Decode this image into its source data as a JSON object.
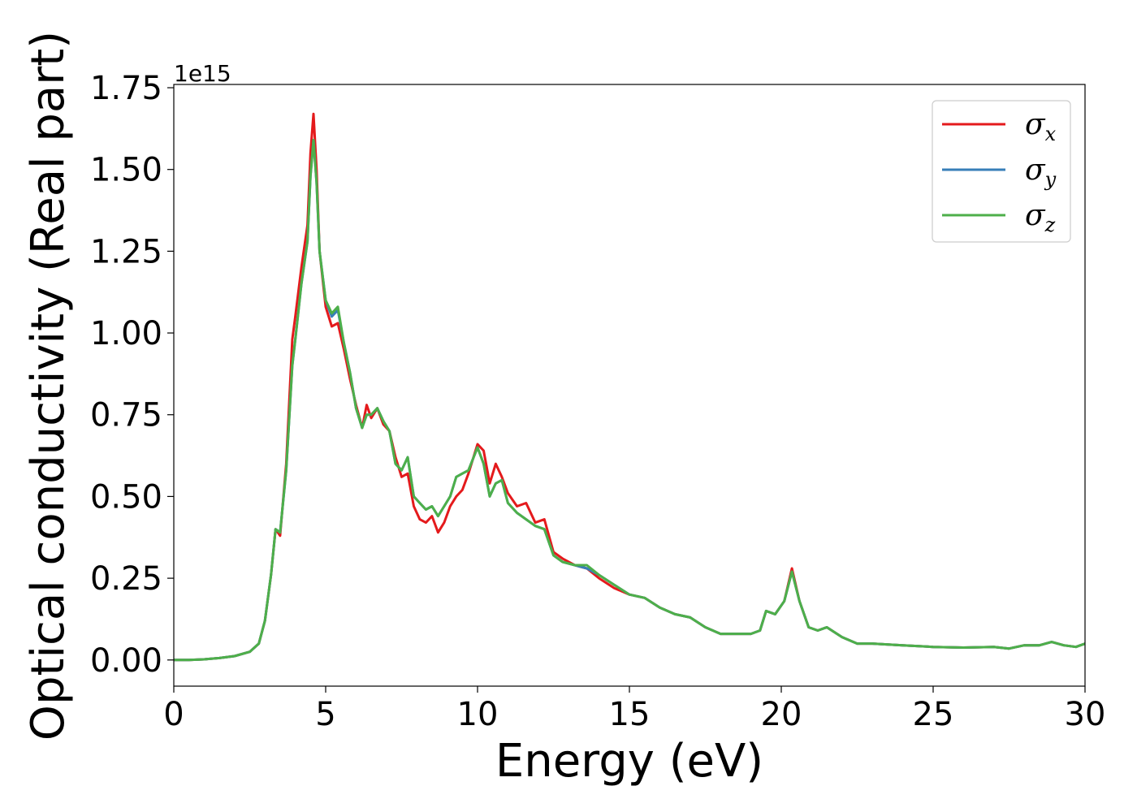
{
  "chart_data": {
    "type": "line",
    "title": "",
    "xlabel": "Energy (eV)",
    "ylabel": "Optical conductivity (Real part)",
    "y_offset_label": "1e15",
    "xlim": [
      0,
      30
    ],
    "ylim": [
      -0.08,
      1.76
    ],
    "x_ticks": [
      0,
      5,
      10,
      15,
      20,
      25,
      30
    ],
    "x_tick_labels": [
      "0",
      "5",
      "10",
      "15",
      "20",
      "25",
      "30"
    ],
    "y_ticks": [
      0.0,
      0.25,
      0.5,
      0.75,
      1.0,
      1.25,
      1.5,
      1.75
    ],
    "y_tick_labels": [
      "0.00",
      "0.25",
      "0.50",
      "0.75",
      "1.00",
      "1.25",
      "1.50",
      "1.75"
    ],
    "grid": false,
    "legend_position": "top-right",
    "series": [
      {
        "name": "σ",
        "subscript": "x",
        "color": "#e41a1c",
        "x": [
          0,
          0.5,
          1,
          1.5,
          2,
          2.5,
          2.8,
          3,
          3.2,
          3.35,
          3.5,
          3.7,
          3.9,
          4.0,
          4.2,
          4.4,
          4.5,
          4.6,
          4.7,
          4.8,
          5.0,
          5.2,
          5.4,
          5.6,
          5.8,
          6.0,
          6.2,
          6.35,
          6.5,
          6.7,
          6.9,
          7.1,
          7.3,
          7.5,
          7.7,
          7.9,
          8.1,
          8.3,
          8.5,
          8.7,
          8.9,
          9.1,
          9.3,
          9.5,
          9.7,
          10.0,
          10.2,
          10.4,
          10.6,
          10.8,
          11.0,
          11.3,
          11.6,
          11.9,
          12.2,
          12.5,
          12.8,
          13.2,
          13.6,
          14.0,
          14.5,
          15.0,
          15.5,
          16.0,
          16.5,
          17.0,
          17.5,
          18.0,
          18.5,
          19.0,
          19.3,
          19.5,
          19.8,
          20.1,
          20.35,
          20.6,
          20.9,
          21.2,
          21.5,
          22.0,
          22.5,
          23.0,
          24.0,
          25.0,
          26.0,
          27.0,
          27.5,
          28.0,
          28.5,
          28.9,
          29.3,
          29.7,
          30.0
        ],
        "values": [
          0.0,
          0.0,
          0.002,
          0.006,
          0.012,
          0.025,
          0.05,
          0.12,
          0.26,
          0.4,
          0.38,
          0.6,
          0.98,
          1.05,
          1.2,
          1.33,
          1.55,
          1.67,
          1.5,
          1.25,
          1.08,
          1.02,
          1.03,
          0.95,
          0.86,
          0.78,
          0.71,
          0.78,
          0.74,
          0.77,
          0.72,
          0.7,
          0.62,
          0.56,
          0.57,
          0.47,
          0.43,
          0.42,
          0.44,
          0.39,
          0.42,
          0.47,
          0.5,
          0.52,
          0.57,
          0.66,
          0.64,
          0.54,
          0.6,
          0.56,
          0.51,
          0.47,
          0.48,
          0.42,
          0.43,
          0.33,
          0.31,
          0.29,
          0.28,
          0.25,
          0.22,
          0.2,
          0.19,
          0.16,
          0.14,
          0.13,
          0.1,
          0.08,
          0.08,
          0.08,
          0.09,
          0.15,
          0.14,
          0.18,
          0.28,
          0.18,
          0.1,
          0.09,
          0.1,
          0.07,
          0.05,
          0.05,
          0.045,
          0.04,
          0.038,
          0.04,
          0.035,
          0.045,
          0.045,
          0.055,
          0.045,
          0.04,
          0.05
        ]
      },
      {
        "name": "σ",
        "subscript": "y",
        "color": "#377eb8",
        "x": [
          0,
          0.5,
          1,
          1.5,
          2,
          2.5,
          2.8,
          3,
          3.2,
          3.35,
          3.5,
          3.7,
          3.9,
          4.0,
          4.2,
          4.4,
          4.5,
          4.6,
          4.7,
          4.8,
          5.0,
          5.2,
          5.4,
          5.6,
          5.8,
          6.0,
          6.2,
          6.35,
          6.5,
          6.7,
          6.9,
          7.1,
          7.3,
          7.5,
          7.7,
          7.9,
          8.1,
          8.3,
          8.5,
          8.7,
          8.9,
          9.1,
          9.3,
          9.5,
          9.7,
          10.0,
          10.2,
          10.4,
          10.6,
          10.8,
          11.0,
          11.3,
          11.6,
          11.9,
          12.2,
          12.5,
          12.8,
          13.2,
          13.6,
          14.0,
          14.5,
          15.0,
          15.5,
          16.0,
          16.5,
          17.0,
          17.5,
          18.0,
          18.5,
          19.0,
          19.3,
          19.5,
          19.8,
          20.1,
          20.35,
          20.6,
          20.9,
          21.2,
          21.5,
          22.0,
          22.5,
          23.0,
          24.0,
          25.0,
          26.0,
          27.0,
          27.5,
          28.0,
          28.5,
          28.9,
          29.3,
          29.7,
          30.0
        ],
        "values": [
          0.0,
          0.0,
          0.002,
          0.006,
          0.012,
          0.025,
          0.05,
          0.12,
          0.26,
          0.4,
          0.39,
          0.58,
          0.9,
          0.98,
          1.15,
          1.28,
          1.48,
          1.59,
          1.46,
          1.25,
          1.1,
          1.05,
          1.07,
          0.97,
          0.88,
          0.77,
          0.71,
          0.75,
          0.75,
          0.77,
          0.73,
          0.7,
          0.6,
          0.58,
          0.62,
          0.5,
          0.48,
          0.46,
          0.47,
          0.44,
          0.47,
          0.5,
          0.56,
          0.57,
          0.58,
          0.65,
          0.6,
          0.5,
          0.54,
          0.55,
          0.48,
          0.45,
          0.43,
          0.41,
          0.4,
          0.32,
          0.3,
          0.29,
          0.28,
          0.26,
          0.23,
          0.2,
          0.19,
          0.16,
          0.14,
          0.13,
          0.1,
          0.08,
          0.08,
          0.08,
          0.09,
          0.15,
          0.14,
          0.18,
          0.27,
          0.18,
          0.1,
          0.09,
          0.1,
          0.07,
          0.05,
          0.05,
          0.045,
          0.04,
          0.038,
          0.04,
          0.035,
          0.045,
          0.045,
          0.055,
          0.045,
          0.04,
          0.05
        ]
      },
      {
        "name": "σ",
        "subscript": "z",
        "color": "#4daf4a",
        "x": [
          0,
          0.5,
          1,
          1.5,
          2,
          2.5,
          2.8,
          3,
          3.2,
          3.35,
          3.5,
          3.7,
          3.9,
          4.0,
          4.2,
          4.4,
          4.5,
          4.6,
          4.7,
          4.8,
          5.0,
          5.2,
          5.4,
          5.6,
          5.8,
          6.0,
          6.2,
          6.35,
          6.5,
          6.7,
          6.9,
          7.1,
          7.3,
          7.5,
          7.7,
          7.9,
          8.1,
          8.3,
          8.5,
          8.7,
          8.9,
          9.1,
          9.3,
          9.5,
          9.7,
          10.0,
          10.2,
          10.4,
          10.6,
          10.8,
          11.0,
          11.3,
          11.6,
          11.9,
          12.2,
          12.5,
          12.8,
          13.2,
          13.6,
          14.0,
          14.5,
          15.0,
          15.5,
          16.0,
          16.5,
          17.0,
          17.5,
          18.0,
          18.5,
          19.0,
          19.3,
          19.5,
          19.8,
          20.1,
          20.35,
          20.6,
          20.9,
          21.2,
          21.5,
          22.0,
          22.5,
          23.0,
          24.0,
          25.0,
          26.0,
          27.0,
          27.5,
          28.0,
          28.5,
          28.9,
          29.3,
          29.7,
          30.0
        ],
        "values": [
          0.0,
          0.0,
          0.002,
          0.006,
          0.012,
          0.025,
          0.05,
          0.12,
          0.26,
          0.4,
          0.39,
          0.58,
          0.9,
          0.98,
          1.15,
          1.28,
          1.48,
          1.59,
          1.46,
          1.25,
          1.1,
          1.06,
          1.08,
          0.97,
          0.88,
          0.77,
          0.71,
          0.75,
          0.75,
          0.77,
          0.73,
          0.7,
          0.6,
          0.58,
          0.62,
          0.5,
          0.48,
          0.46,
          0.47,
          0.44,
          0.47,
          0.5,
          0.56,
          0.57,
          0.58,
          0.65,
          0.6,
          0.5,
          0.54,
          0.55,
          0.48,
          0.45,
          0.43,
          0.41,
          0.4,
          0.32,
          0.3,
          0.29,
          0.29,
          0.26,
          0.23,
          0.2,
          0.19,
          0.16,
          0.14,
          0.13,
          0.1,
          0.08,
          0.08,
          0.08,
          0.09,
          0.15,
          0.14,
          0.18,
          0.27,
          0.18,
          0.1,
          0.09,
          0.1,
          0.07,
          0.05,
          0.05,
          0.045,
          0.04,
          0.038,
          0.04,
          0.035,
          0.045,
          0.045,
          0.055,
          0.045,
          0.04,
          0.05
        ]
      }
    ]
  }
}
